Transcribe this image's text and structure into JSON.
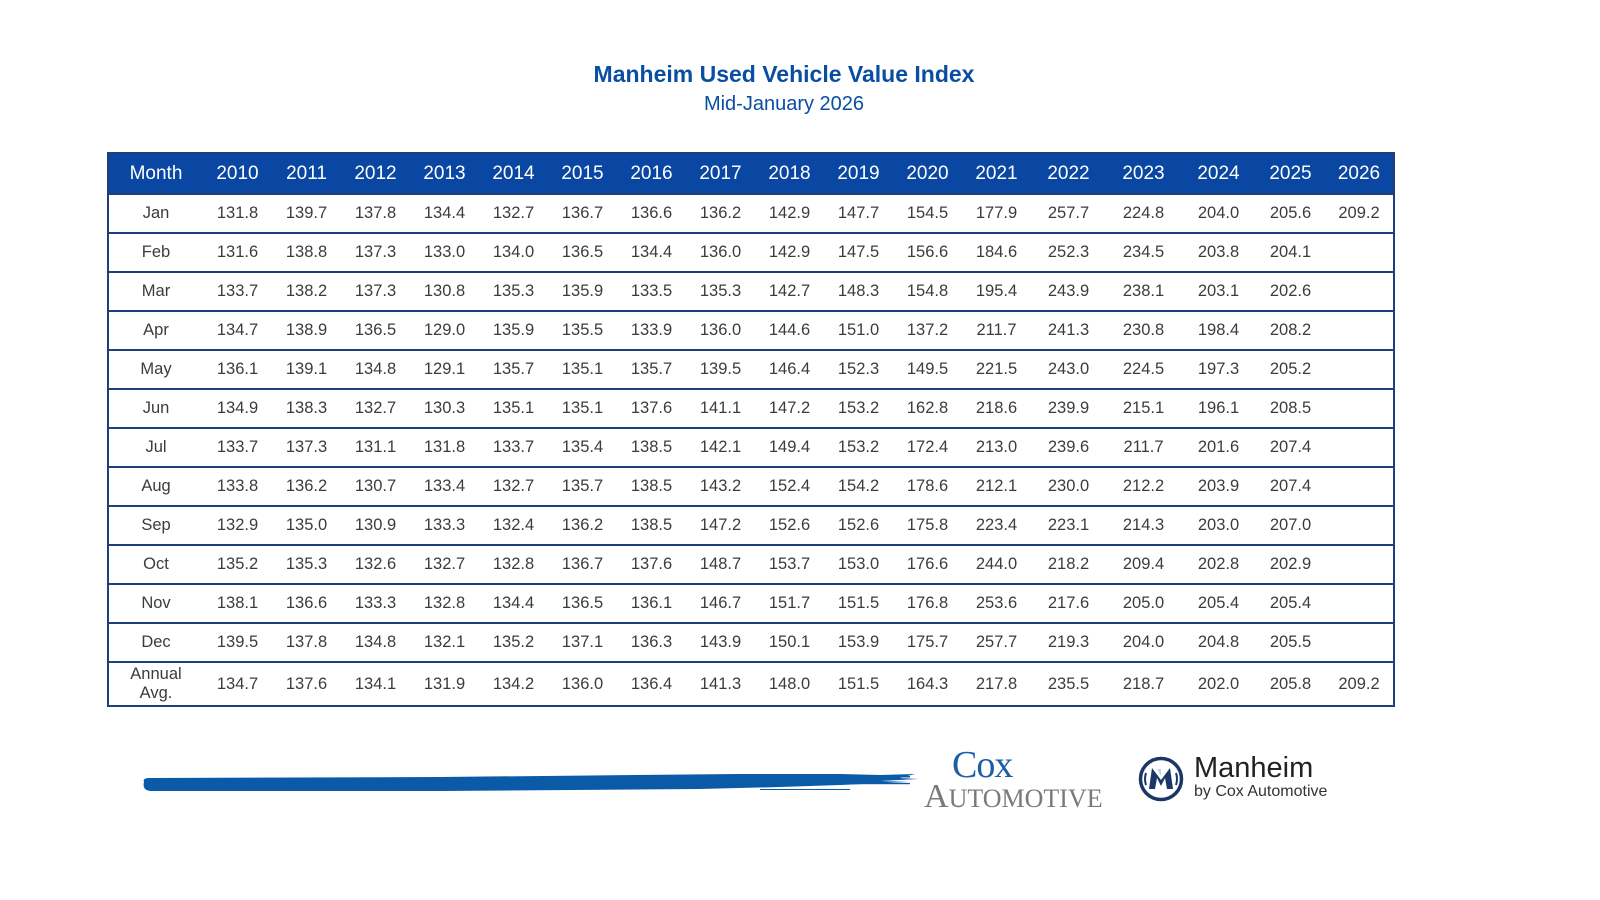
{
  "header": {
    "title": "Manheim Used Vehicle Value Index",
    "subtitle": "Mid-January 2026"
  },
  "colors": {
    "brand_blue": "#0a4ea3",
    "header_bg": "#0a47a3",
    "border": "#1f3f7a"
  },
  "table": {
    "columns": [
      "Month",
      "2010",
      "2011",
      "2012",
      "2013",
      "2014",
      "2015",
      "2016",
      "2017",
      "2018",
      "2019",
      "2020",
      "2021",
      "2022",
      "2023",
      "2024",
      "2025",
      "2026"
    ],
    "rows": [
      {
        "label": "Jan",
        "values": [
          "131.8",
          "139.7",
          "137.8",
          "134.4",
          "132.7",
          "136.7",
          "136.6",
          "136.2",
          "142.9",
          "147.7",
          "154.5",
          "177.9",
          "257.7",
          "224.8",
          "204.0",
          "205.6",
          "209.2"
        ]
      },
      {
        "label": "Feb",
        "values": [
          "131.6",
          "138.8",
          "137.3",
          "133.0",
          "134.0",
          "136.5",
          "134.4",
          "136.0",
          "142.9",
          "147.5",
          "156.6",
          "184.6",
          "252.3",
          "234.5",
          "203.8",
          "204.1",
          ""
        ]
      },
      {
        "label": "Mar",
        "values": [
          "133.7",
          "138.2",
          "137.3",
          "130.8",
          "135.3",
          "135.9",
          "133.5",
          "135.3",
          "142.7",
          "148.3",
          "154.8",
          "195.4",
          "243.9",
          "238.1",
          "203.1",
          "202.6",
          ""
        ]
      },
      {
        "label": "Apr",
        "values": [
          "134.7",
          "138.9",
          "136.5",
          "129.0",
          "135.9",
          "135.5",
          "133.9",
          "136.0",
          "144.6",
          "151.0",
          "137.2",
          "211.7",
          "241.3",
          "230.8",
          "198.4",
          "208.2",
          ""
        ]
      },
      {
        "label": "May",
        "values": [
          "136.1",
          "139.1",
          "134.8",
          "129.1",
          "135.7",
          "135.1",
          "135.7",
          "139.5",
          "146.4",
          "152.3",
          "149.5",
          "221.5",
          "243.0",
          "224.5",
          "197.3",
          "205.2",
          ""
        ]
      },
      {
        "label": "Jun",
        "values": [
          "134.9",
          "138.3",
          "132.7",
          "130.3",
          "135.1",
          "135.1",
          "137.6",
          "141.1",
          "147.2",
          "153.2",
          "162.8",
          "218.6",
          "239.9",
          "215.1",
          "196.1",
          "208.5",
          ""
        ]
      },
      {
        "label": "Jul",
        "values": [
          "133.7",
          "137.3",
          "131.1",
          "131.8",
          "133.7",
          "135.4",
          "138.5",
          "142.1",
          "149.4",
          "153.2",
          "172.4",
          "213.0",
          "239.6",
          "211.7",
          "201.6",
          "207.4",
          ""
        ]
      },
      {
        "label": "Aug",
        "values": [
          "133.8",
          "136.2",
          "130.7",
          "133.4",
          "132.7",
          "135.7",
          "138.5",
          "143.2",
          "152.4",
          "154.2",
          "178.6",
          "212.1",
          "230.0",
          "212.2",
          "203.9",
          "207.4",
          ""
        ]
      },
      {
        "label": "Sep",
        "values": [
          "132.9",
          "135.0",
          "130.9",
          "133.3",
          "132.4",
          "136.2",
          "138.5",
          "147.2",
          "152.6",
          "152.6",
          "175.8",
          "223.4",
          "223.1",
          "214.3",
          "203.0",
          "207.0",
          ""
        ]
      },
      {
        "label": "Oct",
        "values": [
          "135.2",
          "135.3",
          "132.6",
          "132.7",
          "132.8",
          "136.7",
          "137.6",
          "148.7",
          "153.7",
          "153.0",
          "176.6",
          "244.0",
          "218.2",
          "209.4",
          "202.8",
          "202.9",
          ""
        ]
      },
      {
        "label": "Nov",
        "values": [
          "138.1",
          "136.6",
          "133.3",
          "132.8",
          "134.4",
          "136.5",
          "136.1",
          "146.7",
          "151.7",
          "151.5",
          "176.8",
          "253.6",
          "217.6",
          "205.0",
          "205.4",
          "205.4",
          ""
        ]
      },
      {
        "label": "Dec",
        "values": [
          "139.5",
          "137.8",
          "134.8",
          "132.1",
          "135.2",
          "137.1",
          "136.3",
          "143.9",
          "150.1",
          "153.9",
          "175.7",
          "257.7",
          "219.3",
          "204.0",
          "204.8",
          "205.5",
          ""
        ]
      }
    ],
    "avg_row": {
      "label_line1": "Annual",
      "label_line2": "Avg.",
      "values": [
        "134.7",
        "137.6",
        "134.1",
        "131.9",
        "134.2",
        "136.0",
        "136.4",
        "141.3",
        "148.0",
        "151.5",
        "164.3",
        "217.8",
        "235.5",
        "218.7",
        "202.0",
        "205.8",
        "209.2"
      ]
    }
  },
  "footer": {
    "decoration_icon": "brush-stroke",
    "cox_logo": {
      "line1": "Cox",
      "line2": "Automotive"
    },
    "manheim_logo": {
      "icon": "manheim-m-icon",
      "name": "Manheim",
      "tagline": "by Cox Automotive"
    }
  }
}
